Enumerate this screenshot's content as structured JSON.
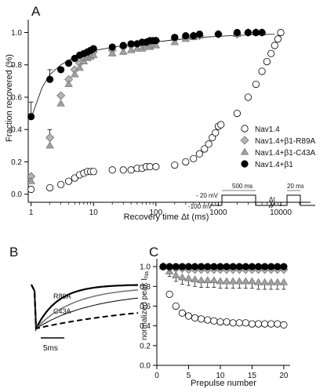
{
  "colors": {
    "nav14_fill": "#ffffff",
    "r89a_fill": "#b4b4b4",
    "c43a_fill": "#a0a0a0",
    "beta1_fill": "#000000",
    "line": "#000000",
    "trace_gray": "#7a7a7a"
  },
  "panel_letters": {
    "a": "A",
    "b": "B",
    "c": "C"
  },
  "chart_data": [
    {
      "panel": "A",
      "type": "scatter",
      "xscale": "log",
      "xlim": [
        0.9,
        30000
      ],
      "ylim": [
        -0.05,
        1.08
      ],
      "xticks": [
        1,
        10,
        100,
        1000,
        10000
      ],
      "xtick_labels": [
        "1",
        "10",
        "100",
        "1000",
        "10000"
      ],
      "yticks": [
        0.0,
        0.2,
        0.4,
        0.6,
        0.8,
        1.0
      ],
      "ytick_labels": [
        "0.0",
        "0.2",
        "0.4",
        "0.6",
        "0.8",
        "1.0"
      ],
      "xlabel": "Recovery time Δt (ms)",
      "ylabel": "Fraction recovered (%)",
      "fit_points": [
        [
          1,
          0.47
        ],
        [
          1.5,
          0.66
        ],
        [
          2,
          0.74
        ],
        [
          3,
          0.8
        ],
        [
          5,
          0.85
        ],
        [
          8,
          0.88
        ],
        [
          15,
          0.9
        ],
        [
          30,
          0.92
        ],
        [
          60,
          0.93
        ],
        [
          150,
          0.95
        ],
        [
          500,
          0.97
        ],
        [
          1500,
          0.98
        ],
        [
          3000,
          0.985
        ],
        [
          8000,
          0.99
        ]
      ],
      "series": [
        {
          "name": "Nav1.4",
          "marker": "circle-open",
          "points": [
            [
              1,
              0.03
            ],
            [
              2,
              0.04
            ],
            [
              3,
              0.06
            ],
            [
              4,
              0.08
            ],
            [
              5,
              0.1
            ],
            [
              6,
              0.12
            ],
            [
              7,
              0.13
            ],
            [
              8,
              0.14
            ],
            [
              9,
              0.14
            ],
            [
              10,
              0.14
            ],
            [
              20,
              0.15
            ],
            [
              30,
              0.15
            ],
            [
              40,
              0.15
            ],
            [
              50,
              0.16
            ],
            [
              60,
              0.16
            ],
            [
              70,
              0.17
            ],
            [
              80,
              0.17
            ],
            [
              100,
              0.17
            ],
            [
              200,
              0.18
            ],
            [
              300,
              0.2
            ],
            [
              400,
              0.22
            ],
            [
              500,
              0.25
            ],
            [
              600,
              0.28
            ],
            [
              700,
              0.31
            ],
            [
              800,
              0.35
            ],
            [
              900,
              0.38
            ],
            [
              1000,
              0.42
            ],
            [
              1100,
              0.43
            ],
            [
              2000,
              0.5
            ],
            [
              3000,
              0.6
            ],
            [
              4000,
              0.68
            ],
            [
              5000,
              0.76
            ],
            [
              6000,
              0.82
            ],
            [
              7000,
              0.87
            ],
            [
              8000,
              0.92
            ],
            [
              9000,
              0.96
            ],
            [
              10000,
              1.0
            ]
          ]
        },
        {
          "name": "Nav1.4+β1-R89A",
          "marker": "diamond",
          "points": [
            [
              1,
              0.11
            ],
            [
              2,
              0.35
            ],
            [
              3,
              0.61
            ],
            [
              4,
              0.71
            ],
            [
              5,
              0.77
            ],
            [
              6,
              0.81
            ],
            [
              7,
              0.84
            ],
            [
              8,
              0.86
            ],
            [
              9,
              0.87
            ],
            [
              10,
              0.88
            ],
            [
              20,
              0.89
            ],
            [
              30,
              0.91
            ],
            [
              40,
              0.92
            ],
            [
              50,
              0.93
            ],
            [
              60,
              0.93
            ],
            [
              70,
              0.94
            ],
            [
              80,
              0.94
            ],
            [
              90,
              0.94
            ],
            [
              100,
              0.95
            ],
            [
              200,
              0.96
            ],
            [
              300,
              0.97
            ],
            [
              400,
              0.98
            ],
            [
              500,
              0.98
            ],
            [
              1000,
              0.99
            ],
            [
              2000,
              0.99
            ],
            [
              3000,
              1.0
            ],
            [
              4000,
              1.0
            ],
            [
              5000,
              1.0
            ]
          ]
        },
        {
          "name": "Nav1.4+β1-C43A",
          "marker": "triangle",
          "points": [
            [
              1,
              0.08
            ],
            [
              2,
              0.3
            ],
            [
              3,
              0.56
            ],
            [
              4,
              0.68
            ],
            [
              5,
              0.74
            ],
            [
              6,
              0.78
            ],
            [
              7,
              0.82
            ],
            [
              8,
              0.84
            ],
            [
              9,
              0.85
            ],
            [
              10,
              0.86
            ],
            [
              20,
              0.87
            ],
            [
              30,
              0.88
            ],
            [
              40,
              0.89
            ],
            [
              50,
              0.9
            ],
            [
              60,
              0.9
            ],
            [
              70,
              0.91
            ],
            [
              80,
              0.91
            ],
            [
              90,
              0.92
            ],
            [
              100,
              0.92
            ],
            [
              200,
              0.94
            ],
            [
              300,
              0.96
            ],
            [
              400,
              0.97
            ],
            [
              500,
              0.98
            ],
            [
              1000,
              0.99
            ],
            [
              2000,
              0.99
            ],
            [
              3000,
              1.0
            ],
            [
              4000,
              1.0
            ],
            [
              5000,
              1.0
            ]
          ]
        },
        {
          "name": "Nav1.4+β1",
          "marker": "circle-filled",
          "points": [
            [
              1,
              0.48
            ],
            [
              2,
              0.71
            ],
            [
              3,
              0.77
            ],
            [
              4,
              0.81
            ],
            [
              5,
              0.84
            ],
            [
              6,
              0.86
            ],
            [
              7,
              0.87
            ],
            [
              8,
              0.88
            ],
            [
              9,
              0.89
            ],
            [
              10,
              0.9
            ],
            [
              20,
              0.91
            ],
            [
              30,
              0.92
            ],
            [
              40,
              0.93
            ],
            [
              50,
              0.93
            ],
            [
              60,
              0.94
            ],
            [
              70,
              0.94
            ],
            [
              80,
              0.95
            ],
            [
              90,
              0.95
            ],
            [
              100,
              0.95
            ],
            [
              200,
              0.97
            ],
            [
              300,
              0.98
            ],
            [
              400,
              0.98
            ],
            [
              500,
              0.99
            ],
            [
              1000,
              0.99
            ],
            [
              2000,
              1.0
            ],
            [
              3000,
              1.0
            ],
            [
              4000,
              1.0
            ],
            [
              5000,
              1.0
            ]
          ]
        }
      ],
      "error_bars": [
        {
          "series": "Nav1.4+β1",
          "x": 1,
          "y": 0.48,
          "err": 0.09
        },
        {
          "series": "Nav1.4+β1",
          "x": 2,
          "y": 0.71,
          "err": 0.06
        },
        {
          "series": "Nav1.4+β1-R89A",
          "x": 2,
          "y": 0.35,
          "err": 0.05
        },
        {
          "series": "Nav1.4+β1-C43A",
          "x": 2,
          "y": 0.3,
          "err": 0.05
        }
      ],
      "legend": {
        "placement": "right",
        "entries": [
          "Nav1.4",
          "Nav1.4+β1-R89A",
          "Nav1.4+β1-C43A",
          "Nav1.4+β1"
        ]
      },
      "protocol_inset": {
        "v_hold": "-100 mV",
        "v_step": "- 20 mV",
        "pulse1": "500 ms",
        "interval": "Δt",
        "pulse2": "20 ms"
      }
    },
    {
      "panel": "B",
      "type": "line",
      "description_labels": [
        "R89A",
        "C43A"
      ],
      "scale_bar": "5ms",
      "traces": [
        {
          "name": "Nav1.4+β1",
          "style": "solid-black-thick",
          "tau": 0.9
        },
        {
          "name": "R89A",
          "style": "solid-gray",
          "tau": 1.6
        },
        {
          "name": "C43A",
          "style": "solid-black-thin",
          "tau": 2.4
        },
        {
          "name": "Nav1.4",
          "style": "dashed-black",
          "tau": 5.0
        }
      ]
    },
    {
      "panel": "C",
      "type": "scatter",
      "xlim": [
        0,
        21
      ],
      "ylim": [
        0,
        1.08
      ],
      "xticks": [
        0,
        5,
        10,
        15,
        20
      ],
      "xtick_labels": [
        "0",
        "5",
        "10",
        "15",
        "20"
      ],
      "yticks": [
        0.0,
        0.2,
        0.4,
        0.6,
        0.8,
        1.0
      ],
      "ytick_labels": [
        "0.0",
        "0.2",
        "0.4",
        "0.6",
        "0.8",
        "1.0"
      ],
      "xlabel": "Prepulse number",
      "ylabel": "normalized peak I",
      "ylabel_sub": "Na",
      "series": [
        {
          "name": "Nav1.4",
          "marker": "circle-open",
          "x": [
            1,
            2,
            3,
            4,
            5,
            6,
            7,
            8,
            9,
            10,
            11,
            12,
            13,
            14,
            15,
            16,
            17,
            18,
            19,
            20
          ],
          "y": [
            1.0,
            0.72,
            0.6,
            0.53,
            0.5,
            0.48,
            0.47,
            0.46,
            0.45,
            0.44,
            0.44,
            0.43,
            0.43,
            0.43,
            0.42,
            0.42,
            0.42,
            0.42,
            0.42,
            0.41
          ],
          "err": [
            0,
            0.02,
            0.02,
            0.02,
            0.02,
            0.02,
            0.02,
            0.02,
            0.02,
            0.02,
            0.02,
            0.02,
            0.02,
            0.02,
            0.02,
            0.02,
            0.02,
            0.02,
            0.02,
            0.02
          ]
        },
        {
          "name": "Nav1.4+β1-C43A",
          "marker": "triangle",
          "x": [
            1,
            2,
            3,
            4,
            5,
            6,
            7,
            8,
            9,
            10,
            11,
            12,
            13,
            14,
            15,
            16,
            17,
            18,
            19,
            20
          ],
          "y": [
            1.0,
            0.95,
            0.91,
            0.89,
            0.88,
            0.87,
            0.86,
            0.86,
            0.86,
            0.85,
            0.85,
            0.85,
            0.85,
            0.85,
            0.85,
            0.84,
            0.84,
            0.84,
            0.84,
            0.84
          ],
          "err": [
            0,
            0.05,
            0.06,
            0.07,
            0.07,
            0.07,
            0.07,
            0.07,
            0.07,
            0.07,
            0.07,
            0.07,
            0.07,
            0.07,
            0.07,
            0.07,
            0.07,
            0.07,
            0.07,
            0.07
          ]
        },
        {
          "name": "Nav1.4+β1-R89A",
          "marker": "diamond",
          "x": [
            1,
            2,
            3,
            4,
            5,
            6,
            7,
            8,
            9,
            10,
            11,
            12,
            13,
            14,
            15,
            16,
            17,
            18,
            19,
            20
          ],
          "y": [
            1.0,
            0.99,
            0.98,
            0.98,
            0.97,
            0.97,
            0.97,
            0.97,
            0.97,
            0.97,
            0.97,
            0.97,
            0.97,
            0.97,
            0.97,
            0.97,
            0.97,
            0.97,
            0.97,
            0.97
          ],
          "err": [
            0,
            0.01,
            0.01,
            0.01,
            0.01,
            0.01,
            0.01,
            0.01,
            0.01,
            0.01,
            0.01,
            0.01,
            0.01,
            0.01,
            0.01,
            0.01,
            0.01,
            0.01,
            0.01,
            0.01
          ]
        },
        {
          "name": "Nav1.4+β1",
          "marker": "circle-filled",
          "x": [
            1,
            2,
            3,
            4,
            5,
            6,
            7,
            8,
            9,
            10,
            11,
            12,
            13,
            14,
            15,
            16,
            17,
            18,
            19,
            20
          ],
          "y": [
            1.0,
            1.0,
            1.0,
            1.0,
            1.0,
            1.0,
            1.0,
            1.0,
            1.0,
            1.0,
            1.0,
            1.0,
            1.0,
            1.0,
            1.0,
            1.0,
            1.0,
            1.0,
            1.0,
            1.0
          ],
          "err": [
            0,
            0,
            0,
            0,
            0,
            0,
            0,
            0,
            0,
            0,
            0,
            0,
            0,
            0,
            0,
            0,
            0,
            0,
            0,
            0
          ]
        }
      ]
    }
  ]
}
